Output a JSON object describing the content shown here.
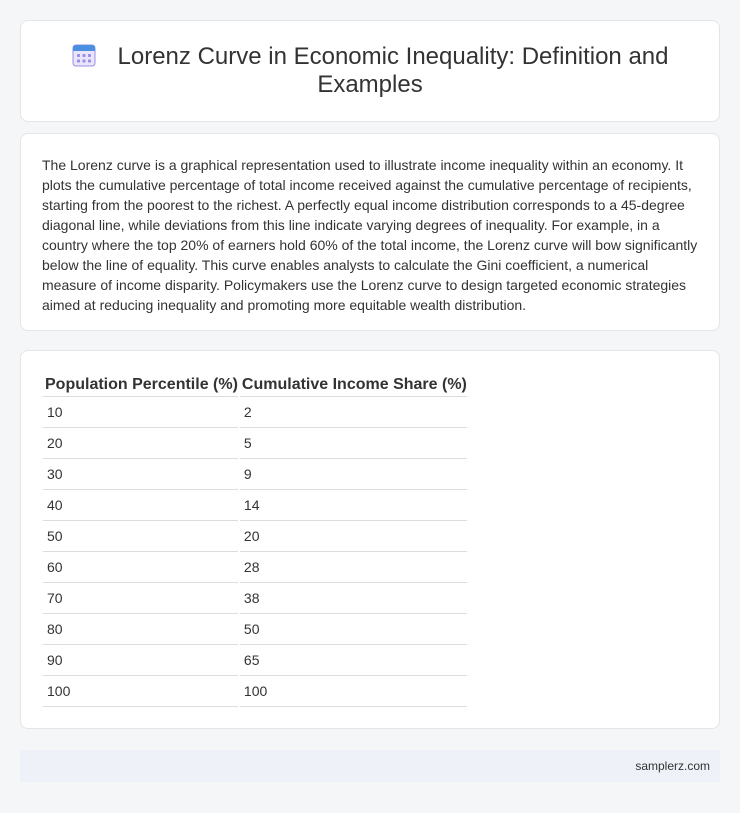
{
  "header": {
    "icon": "calendar-icon",
    "title": "Lorenz Curve in Economic Inequality: Definition and Examples"
  },
  "intro": {
    "text": "The Lorenz curve is a graphical representation used to illustrate income inequality within an economy. It plots the cumulative percentage of total income received against the cumulative percentage of recipients, starting from the poorest to the richest. A perfectly equal income distribution corresponds to a 45-degree diagonal line, while deviations from this line indicate varying degrees of inequality. For example, in a country where the top 20% of earners hold 60% of the total income, the Lorenz curve will bow significantly below the line of equality. This curve enables analysts to calculate the Gini coefficient, a numerical measure of income disparity. Policymakers use the Lorenz curve to design targeted economic strategies aimed at reducing inequality and promoting more equitable wealth distribution."
  },
  "table": {
    "headers": [
      "Population Percentile (%)",
      "Cumulative Income Share (%)"
    ],
    "rows": [
      [
        "10",
        "2"
      ],
      [
        "20",
        "5"
      ],
      [
        "30",
        "9"
      ],
      [
        "40",
        "14"
      ],
      [
        "50",
        "20"
      ],
      [
        "60",
        "28"
      ],
      [
        "70",
        "38"
      ],
      [
        "80",
        "50"
      ],
      [
        "90",
        "65"
      ],
      [
        "100",
        "100"
      ]
    ]
  },
  "footer": {
    "site": "samplerz.com"
  },
  "colors": {
    "icon_blue": "#4a8fe0",
    "icon_purple": "#9b8fe6",
    "background": "#f5f6f8",
    "footer_bg": "#eef1f8"
  }
}
